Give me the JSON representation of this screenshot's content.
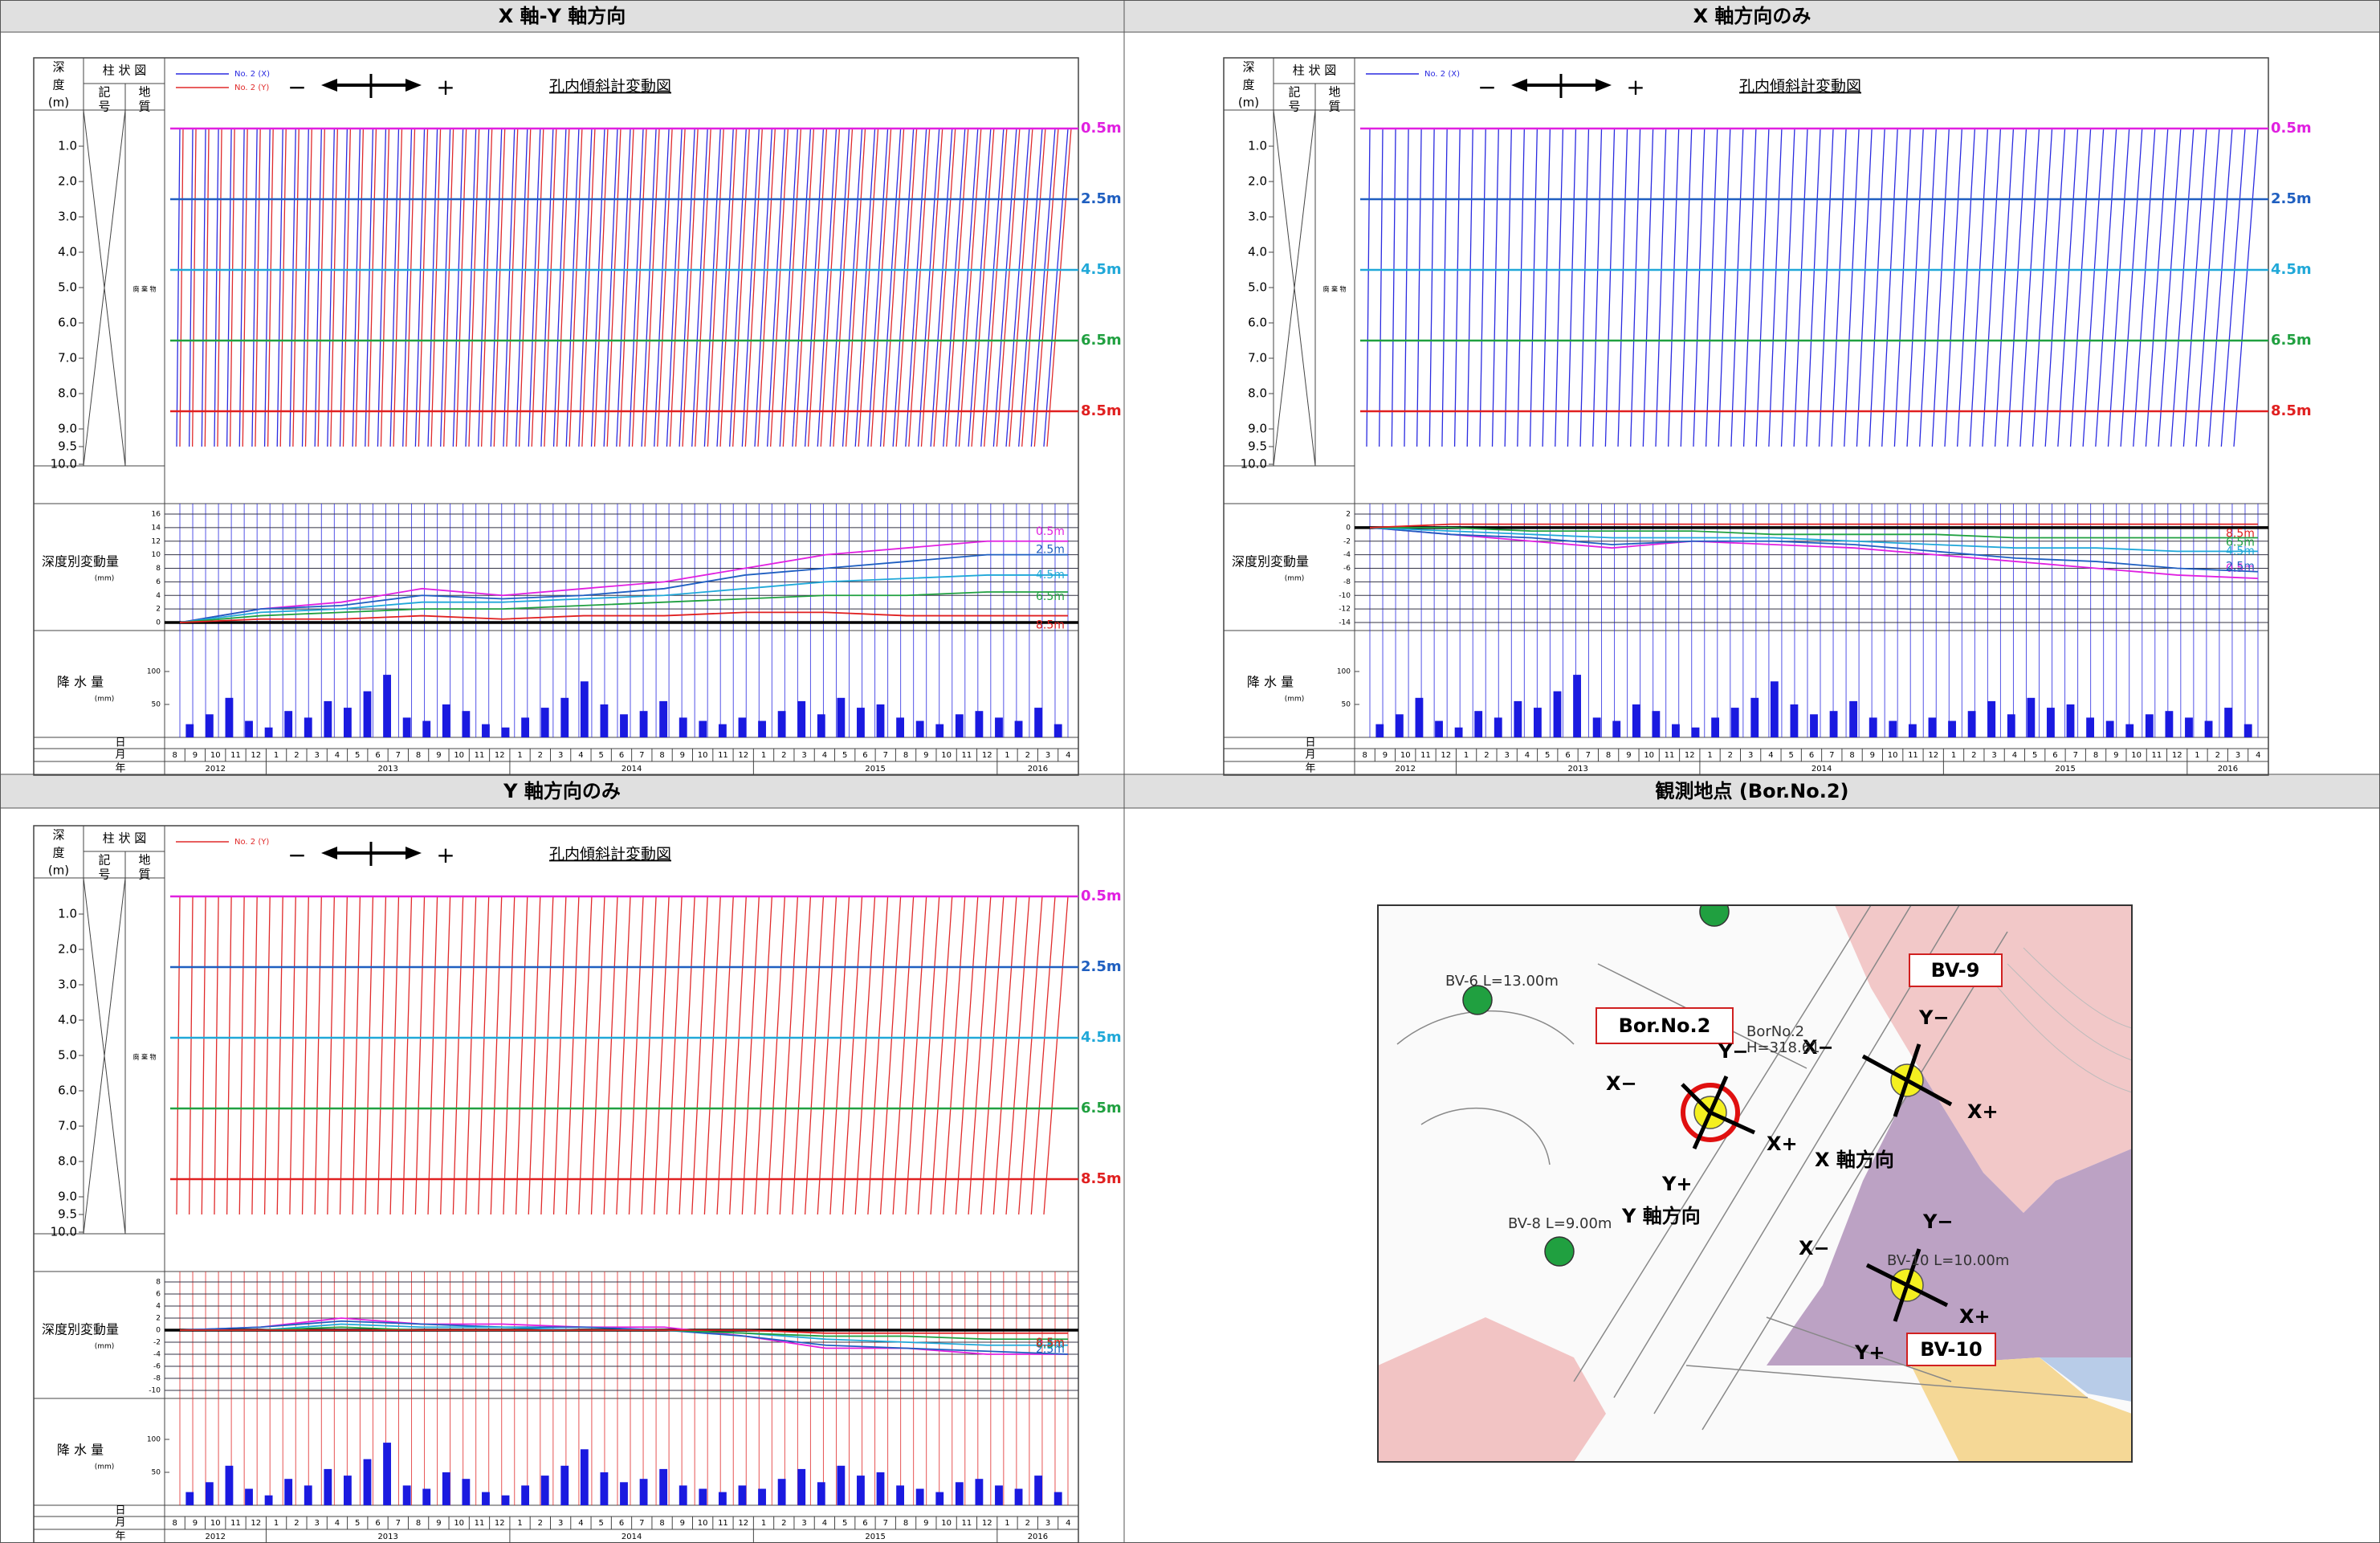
{
  "panels": [
    {
      "title": "X 軸-Y 軸方向",
      "legend": [
        {
          "name": "No. 2 (X)",
          "color": "#2a2ae0"
        },
        {
          "name": "No. 2 (Y)",
          "color": "#e02a2a"
        }
      ],
      "disp": {
        "type": "line",
        "ylim": [
          0,
          16
        ],
        "yticks": [
          0,
          2,
          4,
          6,
          8,
          10,
          12,
          14,
          16
        ],
        "series": [
          {
            "name": "0.5m",
            "color": "#e020e0",
            "values": [
              0,
              2,
              3,
              5,
              4,
              5,
              6,
              8,
              10,
              11,
              12,
              12
            ]
          },
          {
            "name": "2.5m",
            "color": "#1f5fc0",
            "values": [
              0,
              2,
              2.5,
              4,
              3.5,
              4,
              5,
              7,
              8,
              9,
              10,
              10
            ]
          },
          {
            "name": "4.5m",
            "color": "#20a8d8",
            "values": [
              0,
              1.5,
              2,
              3,
              3,
              3.5,
              4,
              5,
              6,
              6.5,
              7,
              7
            ]
          },
          {
            "name": "6.5m",
            "color": "#20a040",
            "values": [
              0,
              1,
              1.5,
              2,
              2,
              2.5,
              3,
              3.5,
              4,
              4,
              4.5,
              4.5
            ]
          },
          {
            "name": "8.5m",
            "color": "#e02020",
            "values": [
              0,
              0.5,
              0.5,
              1,
              0.5,
              1,
              1,
              1.5,
              1.5,
              1,
              1,
              1
            ]
          }
        ]
      }
    },
    {
      "title": "X 軸方向のみ",
      "legend": [
        {
          "name": "No. 2 (X)",
          "color": "#2a2ae0"
        }
      ],
      "disp": {
        "type": "line",
        "ylim": [
          -14,
          2
        ],
        "yticks": [
          -14,
          -12,
          -10,
          -8,
          -6,
          -4,
          -2,
          0,
          2
        ],
        "series": [
          {
            "name": "0.5m",
            "color": "#e020e0",
            "values": [
              0,
              -1,
              -2,
              -3,
              -2,
              -2.5,
              -3,
              -4,
              -5,
              -6,
              -7,
              -7.5
            ]
          },
          {
            "name": "2.5m",
            "color": "#1f5fc0",
            "values": [
              0,
              -1,
              -1.5,
              -2.5,
              -2,
              -2,
              -2.5,
              -3.5,
              -4.5,
              -5,
              -6,
              -6.5
            ]
          },
          {
            "name": "4.5m",
            "color": "#20a8d8",
            "values": [
              0,
              -0.5,
              -1,
              -1.5,
              -1.5,
              -1.5,
              -2,
              -2.5,
              -3,
              -3,
              -3.5,
              -3.5
            ]
          },
          {
            "name": "6.5m",
            "color": "#20a040",
            "values": [
              0,
              0,
              -0.5,
              -0.5,
              -0.5,
              -1,
              -1,
              -1,
              -1.5,
              -1.5,
              -1.5,
              -1.5
            ]
          },
          {
            "name": "8.5m",
            "color": "#e02020",
            "values": [
              0,
              0.5,
              0.5,
              0.5,
              0.5,
              0.5,
              0.5,
              0.5,
              0.5,
              0.5,
              0.5,
              0.5
            ]
          }
        ]
      }
    },
    {
      "title": "Y 軸方向のみ",
      "legend": [
        {
          "name": "No. 2 (Y)",
          "color": "#e02a2a"
        }
      ],
      "disp": {
        "type": "line",
        "ylim": [
          -10,
          8
        ],
        "yticks": [
          -10,
          -8,
          -6,
          -4,
          -2,
          0,
          2,
          4,
          6,
          8
        ],
        "series": [
          {
            "name": "0.5m",
            "color": "#e020e0",
            "values": [
              0,
              0.5,
              2,
              1,
              1,
              0.5,
              0.5,
              -1,
              -3,
              -3,
              -4,
              -4
            ]
          },
          {
            "name": "2.5m",
            "color": "#1f5fc0",
            "values": [
              0,
              0.5,
              1.5,
              1,
              0.5,
              0.5,
              0,
              -1,
              -2.5,
              -3,
              -3.5,
              -4
            ]
          },
          {
            "name": "4.5m",
            "color": "#20a8d8",
            "values": [
              0,
              0,
              1,
              0.5,
              0.5,
              0,
              0,
              -0.5,
              -1.5,
              -2,
              -2.5,
              -2.5
            ]
          },
          {
            "name": "6.5m",
            "color": "#20a040",
            "values": [
              0,
              0,
              0.5,
              0,
              0,
              0,
              0,
              -0.5,
              -1,
              -1,
              -1.5,
              -1.5
            ]
          },
          {
            "name": "8.5m",
            "color": "#e02020",
            "values": [
              0,
              0,
              0,
              0,
              0,
              0,
              0,
              0,
              -0.5,
              -0.5,
              -0.5,
              -0.5
            ]
          }
        ]
      }
    },
    {
      "title": "観測地点 (Bor.No.2)"
    }
  ],
  "common": {
    "chart_title": "孔内傾斜計変動図",
    "plus": "+",
    "minus": "−",
    "depth_header": [
      "深",
      "度",
      "(m)"
    ],
    "col_header": "柱 状 図",
    "kigo": [
      "記",
      "号"
    ],
    "chishitsu": [
      "地",
      "質"
    ],
    "soil": "廃 棄 物",
    "depth": {
      "ylim": [
        0,
        10
      ],
      "yticks": [
        {
          "value": 1,
          "label": "1.0"
        },
        {
          "value": 2,
          "label": "2.0"
        },
        {
          "value": 3,
          "label": "3.0"
        },
        {
          "value": 4,
          "label": "4.0"
        },
        {
          "value": 5,
          "label": "5.0"
        },
        {
          "value": 6,
          "label": "6.0"
        },
        {
          "value": 7,
          "label": "7.0"
        },
        {
          "value": 8,
          "label": "8.0"
        },
        {
          "value": 9,
          "label": "9.0"
        },
        {
          "value": 9.5,
          "label": "9.5"
        },
        {
          "value": 10,
          "label": "10.0"
        }
      ],
      "markers": [
        {
          "value": 0.5,
          "label": "0.5m",
          "color": "#e020e0"
        },
        {
          "value": 2.5,
          "label": "2.5m",
          "color": "#1f5fc0"
        },
        {
          "value": 4.5,
          "label": "4.5m",
          "color": "#20a8d8"
        },
        {
          "value": 6.5,
          "label": "6.5m",
          "color": "#20a040"
        },
        {
          "value": 8.5,
          "label": "8.5m",
          "color": "#e02020"
        }
      ]
    },
    "disp_label": "深度別変動量",
    "disp_unit": "(mm)",
    "rain_label": "降 水 量",
    "rain_unit": "(mm)",
    "rain": {
      "type": "bar",
      "color": "#1a1ae0",
      "ylim": [
        0,
        150
      ],
      "yticks": [
        50,
        100
      ],
      "values": [
        20,
        35,
        60,
        25,
        15,
        40,
        30,
        55,
        45,
        70,
        95,
        30,
        25,
        50,
        40,
        20,
        15,
        30,
        45,
        60,
        85,
        50,
        35,
        40,
        55,
        30,
        25,
        20,
        30,
        25,
        40,
        55,
        35,
        60,
        45,
        50,
        30,
        25,
        20,
        35,
        40,
        30,
        25,
        45,
        20
      ]
    },
    "row_day": "日",
    "row_month": "月",
    "row_year": "年",
    "months": [
      "8",
      "9",
      "10",
      "11",
      "12",
      "1",
      "2",
      "3",
      "4",
      "5",
      "6",
      "7",
      "8",
      "9",
      "10",
      "11",
      "12",
      "1",
      "2",
      "3",
      "4",
      "5",
      "6",
      "7",
      "8",
      "9",
      "10",
      "11",
      "12",
      "1",
      "2",
      "3",
      "4",
      "5",
      "6",
      "7",
      "8",
      "9",
      "10",
      "11",
      "12",
      "1",
      "2",
      "3",
      "4"
    ],
    "years": [
      "2012",
      "2013",
      "2014",
      "2015",
      "2016"
    ]
  },
  "map": {
    "bor": "Bor.No.2",
    "bv9": "BV-9",
    "bv10": "BV-10",
    "x_dir": "X 軸方向",
    "y_dir": "Y 軸方向",
    "bv6": "BV-6 L=13.00m",
    "bv8": "BV-8 L=9.00m",
    "bor_no": "BorNo.2",
    "bor_h": "H=318.61",
    "bv10l": "BV-10 L=10.00m",
    "xp": "X+",
    "xm": "X−",
    "yp": "Y+",
    "ym": "Y−"
  }
}
